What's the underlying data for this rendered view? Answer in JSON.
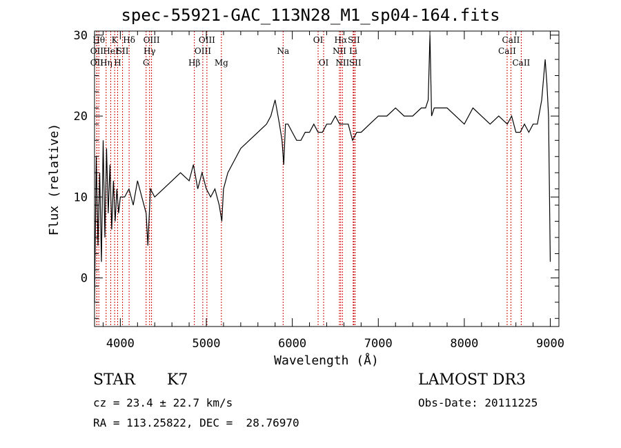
{
  "chart_data": {
    "type": "line",
    "title": "spec-55921-GAC_113N28_M1_sp04-164.fits",
    "xlabel": "Wavelength (Å)",
    "ylabel": "Flux (relative)",
    "xlim": [
      3700,
      9100
    ],
    "ylim": [
      -6,
      30.5
    ],
    "x_ticks": [
      4000,
      5000,
      6000,
      7000,
      8000,
      9000
    ],
    "y_ticks": [
      0,
      10,
      20,
      30
    ],
    "line_color": "#000000",
    "marker_color": "#cc0000",
    "series": [
      {
        "name": "flux",
        "x": [
          3700,
          3720,
          3740,
          3760,
          3780,
          3800,
          3820,
          3840,
          3860,
          3880,
          3900,
          3920,
          3940,
          3960,
          3980,
          4000,
          4050,
          4100,
          4150,
          4200,
          4250,
          4300,
          4320,
          4350,
          4400,
          4500,
          4600,
          4700,
          4800,
          4850,
          4900,
          4950,
          5000,
          5050,
          5100,
          5150,
          5180,
          5200,
          5250,
          5300,
          5400,
          5500,
          5600,
          5700,
          5750,
          5800,
          5850,
          5880,
          5900,
          5920,
          5950,
          6000,
          6050,
          6100,
          6150,
          6200,
          6250,
          6300,
          6350,
          6400,
          6450,
          6500,
          6550,
          6600,
          6650,
          6700,
          6750,
          6800,
          6900,
          7000,
          7100,
          7200,
          7300,
          7400,
          7500,
          7550,
          7580,
          7600,
          7620,
          7650,
          7700,
          7800,
          7900,
          8000,
          8100,
          8200,
          8300,
          8400,
          8500,
          8550,
          8600,
          8650,
          8700,
          8750,
          8800,
          8850,
          8900,
          8940,
          8960,
          8980,
          9000
        ],
        "y": [
          -3,
          15,
          4,
          13,
          2,
          17,
          5,
          16,
          8,
          14,
          6,
          12,
          7,
          11,
          8,
          10,
          10,
          11,
          9,
          12,
          10,
          8,
          4,
          11,
          10,
          11,
          12,
          13,
          12,
          14,
          11,
          13,
          11,
          10,
          11,
          9,
          7,
          11,
          13,
          14,
          16,
          17,
          18,
          19,
          20,
          22,
          19,
          17,
          14,
          19,
          19,
          18,
          17,
          17,
          18,
          18,
          19,
          18,
          18,
          19,
          19,
          20,
          19,
          19,
          19,
          17,
          18,
          18,
          19,
          20,
          20,
          21,
          20,
          20,
          21,
          21,
          22,
          30,
          20,
          21,
          21,
          21,
          20,
          19,
          21,
          20,
          19,
          20,
          19,
          20,
          18,
          18,
          19,
          18,
          19,
          19,
          22,
          27,
          24,
          20,
          2
        ]
      }
    ],
    "line_markers": [
      {
        "wavelength": 3750,
        "label": "Hθ",
        "row": 1
      },
      {
        "wavelength": 3727,
        "label": "OII",
        "row": 2
      },
      {
        "wavelength": 3727,
        "label": "OII",
        "row": 3
      },
      {
        "wavelength": 3835,
        "label": "Hη",
        "row": 3
      },
      {
        "wavelength": 3889,
        "label": "HeI",
        "row": 2
      },
      {
        "wavelength": 3934,
        "label": "K",
        "row": 1
      },
      {
        "wavelength": 3969,
        "label": "H",
        "row": 3
      },
      {
        "wavelength": 4026,
        "label": "SII",
        "row": 2
      },
      {
        "wavelength": 4102,
        "label": "Hδ",
        "row": 1
      },
      {
        "wavelength": 4300,
        "label": "G",
        "row": 3
      },
      {
        "wavelength": 4340,
        "label": "Hγ",
        "row": 2
      },
      {
        "wavelength": 4363,
        "label": "OIII",
        "row": 1
      },
      {
        "wavelength": 4861,
        "label": "Hβ",
        "row": 3
      },
      {
        "wavelength": 4959,
        "label": "OIII",
        "row": 2
      },
      {
        "wavelength": 5007,
        "label": "OIII",
        "row": 1
      },
      {
        "wavelength": 5175,
        "label": "Mg",
        "row": 3
      },
      {
        "wavelength": 5893,
        "label": "Na",
        "row": 2
      },
      {
        "wavelength": 6300,
        "label": "OI",
        "row": 1
      },
      {
        "wavelength": 6364,
        "label": "OI",
        "row": 3
      },
      {
        "wavelength": 6548,
        "label": "NII",
        "row": 2
      },
      {
        "wavelength": 6563,
        "label": "Hα",
        "row": 1
      },
      {
        "wavelength": 6583,
        "label": "NII",
        "row": 3
      },
      {
        "wavelength": 6708,
        "label": "Li",
        "row": 2
      },
      {
        "wavelength": 6716,
        "label": "SII",
        "row": 1
      },
      {
        "wavelength": 6731,
        "label": "SII",
        "row": 3
      },
      {
        "wavelength": 8498,
        "label": "CaII",
        "row": 2
      },
      {
        "wavelength": 8542,
        "label": "CaII",
        "row": 1
      },
      {
        "wavelength": 8662,
        "label": "CaII",
        "row": 3
      }
    ]
  },
  "info": {
    "object_class": "STAR",
    "subclass": "K7",
    "survey": "LAMOST DR3",
    "redshift": "cz = 23.4 ± 22.7 km/s",
    "obs_date": "Obs-Date: 20111225",
    "coords": "RA = 113.25822, DEC =  28.76970"
  }
}
